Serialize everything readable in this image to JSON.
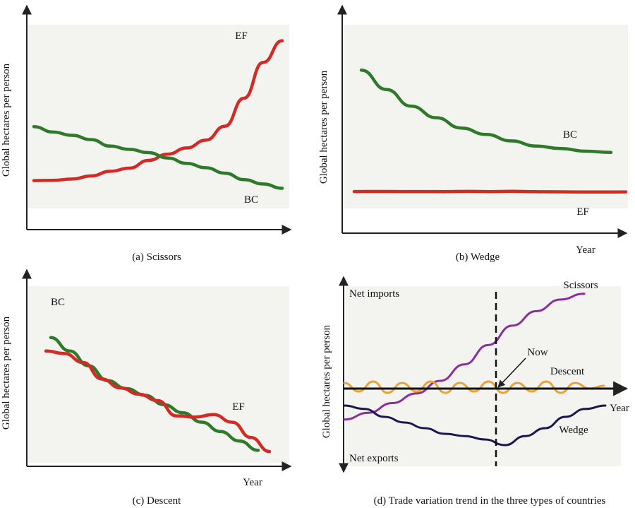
{
  "chart_data": [
    {
      "id": "a",
      "type": "line",
      "caption": "(a) Scissors",
      "ylabel": "Global hectares per person",
      "xlabel": "",
      "series": [
        {
          "name": "EF",
          "color": "#d42a25",
          "values": [
            2,
            2.2,
            3,
            5,
            8,
            10,
            15,
            19,
            23,
            28,
            37,
            55,
            78,
            92
          ]
        },
        {
          "name": "BC",
          "color": "#2f7a28",
          "values": [
            58,
            53,
            50,
            46,
            40,
            37,
            34,
            29,
            24,
            20,
            15,
            9,
            5,
            1
          ]
        }
      ]
    },
    {
      "id": "b",
      "type": "line",
      "caption": "(b) Wedge",
      "ylabel": "Global hectares per person",
      "xlabel": "Year",
      "series": [
        {
          "name": "BC",
          "color": "#2f7a28",
          "values": [
            85,
            70,
            57,
            48,
            40,
            35,
            30,
            26,
            24,
            22,
            21
          ]
        },
        {
          "name": "EF",
          "color": "#d42a25",
          "values": [
            12,
            12.5,
            12,
            11.6,
            11.2,
            13,
            11.5,
            14,
            10.5,
            9.5,
            8,
            7.5,
            9
          ]
        }
      ]
    },
    {
      "id": "c",
      "type": "line",
      "caption": "(c) Descent",
      "ylabel": "Global hectares per person",
      "xlabel": "Year",
      "series": [
        {
          "name": "BC",
          "color": "#2f7a28",
          "values": [
            88,
            78,
            67,
            56,
            50,
            45,
            38,
            32,
            25,
            18,
            11,
            4
          ]
        },
        {
          "name": "EF",
          "color": "#d42a25",
          "values": [
            84,
            82,
            75,
            62,
            55,
            50,
            45,
            33,
            32,
            34,
            28,
            16,
            5
          ]
        }
      ]
    },
    {
      "id": "d",
      "type": "line",
      "caption": "(d) Trade variation trend in the three types of countries",
      "ylabel": "Global hectares per person",
      "xlabel": "Year",
      "labels": {
        "top": "Net imports",
        "bottom": "Net exports",
        "now": "Now"
      },
      "series": [
        {
          "name": "Scissors",
          "color": "#8a2f9e",
          "values": [
            -32,
            -25,
            -15,
            -5,
            8,
            25,
            45,
            65,
            80,
            92,
            98
          ]
        },
        {
          "name": "Descent",
          "color": "#e8a23a",
          "values": [
            4,
            -2,
            5,
            -3,
            4,
            -2,
            5,
            -3,
            4,
            -2,
            5,
            -3,
            4,
            -2,
            5,
            -3,
            4,
            0,
            2
          ]
        },
        {
          "name": "Wedge",
          "color": "#1a1650",
          "values": [
            -15,
            -18,
            -25,
            -30,
            -35,
            -40,
            -42,
            -45,
            -50,
            -42,
            -35,
            -25,
            -18,
            -15
          ]
        }
      ]
    }
  ]
}
